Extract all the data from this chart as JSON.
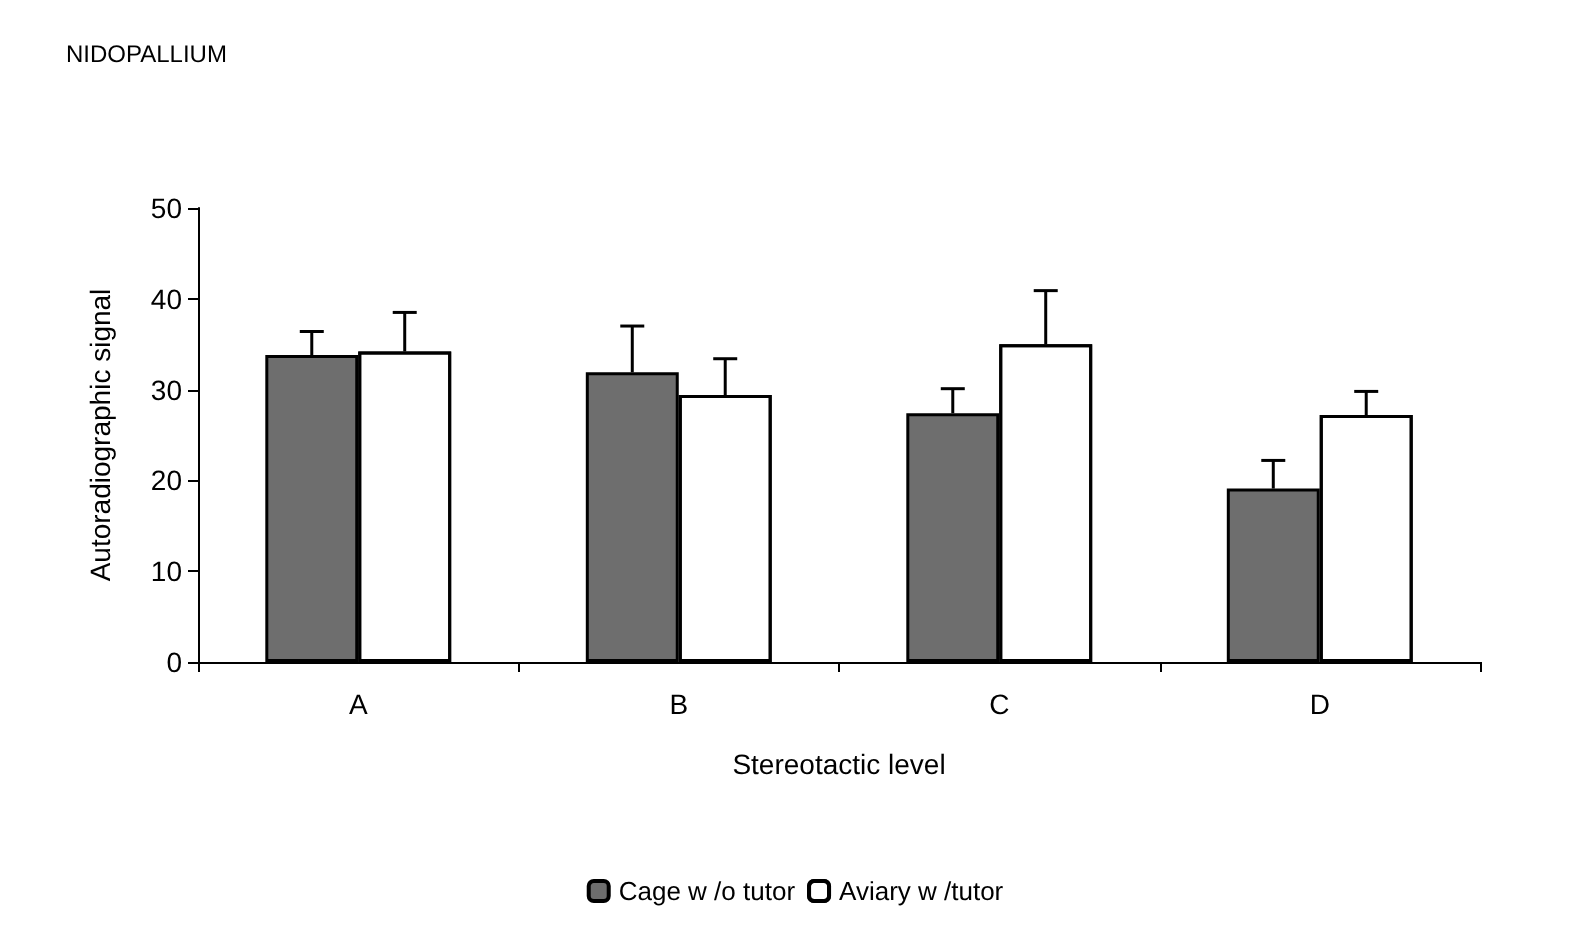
{
  "chart_data": {
    "type": "bar",
    "title": "NIDOPALLIUM",
    "xlabel": "Stereotactic level",
    "ylabel": "Autoradiographic signal",
    "categories": [
      "A",
      "B",
      "C",
      "D"
    ],
    "series": [
      {
        "name": "Cage w /o tutor",
        "color": "#6e6e6e",
        "values": [
          33.8,
          31.9,
          27.4,
          19.1
        ],
        "errors": [
          [
            33.8,
            36.4
          ],
          [
            31.9,
            37.0
          ],
          [
            27.4,
            30.1
          ],
          [
            19.1,
            22.2
          ]
        ]
      },
      {
        "name": "Aviary w /tutor",
        "color": "#ffffff",
        "values": [
          34.2,
          29.4,
          35.0,
          27.2
        ],
        "errors": [
          [
            34.2,
            38.5
          ],
          [
            29.4,
            33.4
          ],
          [
            35.0,
            40.9
          ],
          [
            27.2,
            29.8
          ]
        ]
      }
    ],
    "ylim": [
      0,
      50
    ],
    "yticks": [
      0,
      10,
      20,
      30,
      40,
      50
    ],
    "grid": false,
    "legend": "bottom"
  }
}
